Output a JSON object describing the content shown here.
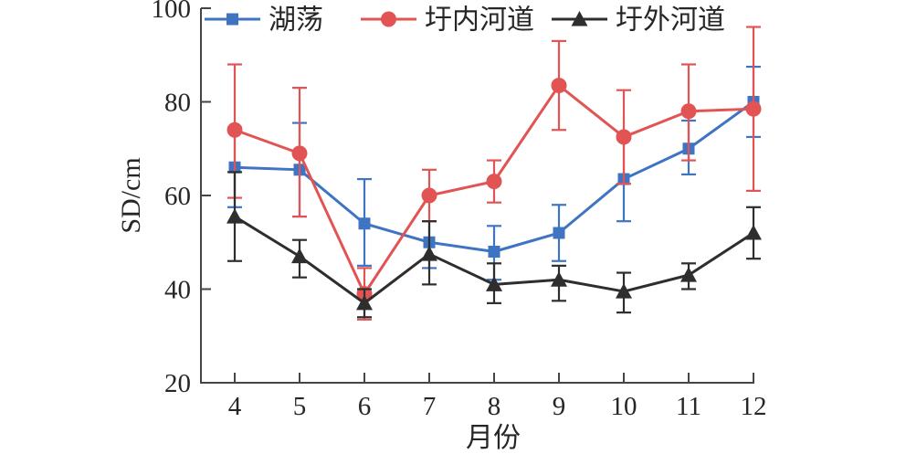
{
  "chart_data": {
    "type": "line",
    "title": "",
    "xlabel": "月份",
    "ylabel": "SD/cm",
    "x_categories": [
      "4",
      "5",
      "6",
      "7",
      "8",
      "9",
      "10",
      "11",
      "12"
    ],
    "yticks": [
      "20",
      "40",
      "60",
      "80",
      "100"
    ],
    "ylim": [
      20,
      100
    ],
    "grid": false,
    "legend_position": "top-horizontal",
    "error_bars": true,
    "series": [
      {
        "name": "湖荡",
        "id": "lake-marsh",
        "marker": "square",
        "color": "#3F74C3",
        "values": [
          66,
          65.5,
          54,
          50,
          48,
          52,
          63.5,
          70,
          80
        ],
        "err_low": [
          57.5,
          55.5,
          45,
          44.5,
          42,
          46,
          54.5,
          64.5,
          72.5
        ],
        "err_high": [
          74.5,
          75.5,
          63.5,
          54.5,
          53.5,
          58,
          72,
          76,
          87.5
        ]
      },
      {
        "name": "圩内河道",
        "id": "inner-polder-channel",
        "marker": "circle",
        "color": "#E25454",
        "values": [
          74,
          69,
          39,
          60,
          63,
          83.5,
          72.5,
          78,
          78.5
        ],
        "err_low": [
          59.5,
          55.5,
          33.5,
          54.5,
          58.5,
          74,
          62.5,
          67.5,
          61
        ],
        "err_high": [
          88,
          83,
          44.5,
          65.5,
          67.5,
          93,
          82.5,
          88,
          96
        ]
      },
      {
        "name": "圩外河道",
        "id": "outer-polder-channel",
        "marker": "triangle",
        "color": "#2E2E2E",
        "values": [
          55.5,
          47,
          37,
          47.5,
          41,
          42,
          39.5,
          43,
          52
        ],
        "err_low": [
          46,
          42.5,
          34,
          41,
          37,
          37.5,
          35,
          40,
          46.5
        ],
        "err_high": [
          65,
          50.5,
          40,
          54.5,
          45.5,
          45,
          43.5,
          45.5,
          57.5
        ]
      }
    ]
  },
  "colors": {
    "axis": "#454545",
    "text": "#262626",
    "background": "#FFFFFF"
  }
}
